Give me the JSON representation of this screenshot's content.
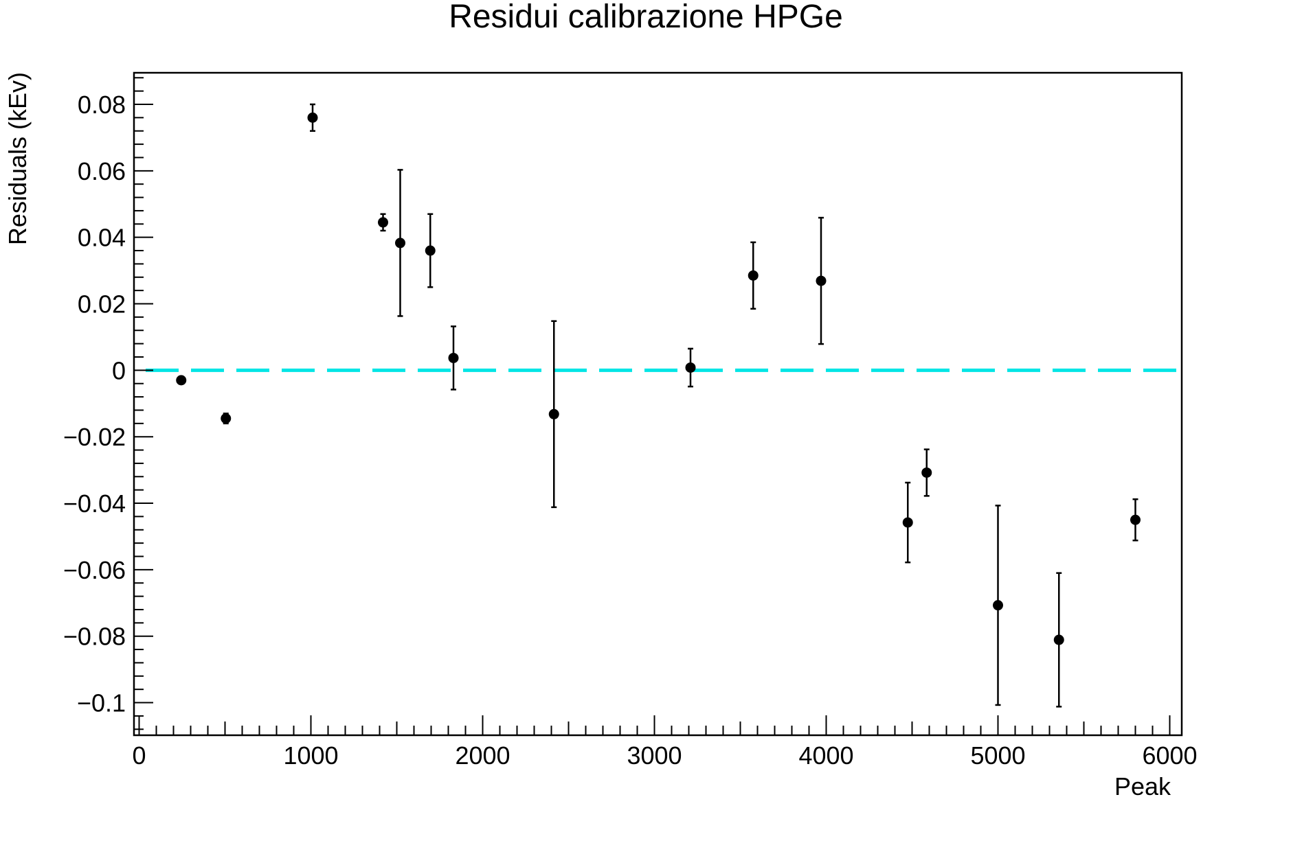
{
  "chart_data": {
    "type": "scatter",
    "title": "Residui calibrazione HPGe",
    "xlabel": "Peak",
    "ylabel": "Residuals (kEv)",
    "xlim": [
      -30,
      6070
    ],
    "ylim": [
      -0.1098,
      0.0895
    ],
    "x_ticks": [
      0,
      1000,
      2000,
      3000,
      4000,
      5000,
      6000
    ],
    "x_tick_labels": [
      "0",
      "1000",
      "2000",
      "3000",
      "4000",
      "5000",
      "6000"
    ],
    "y_ticks": [
      0.08,
      0.06,
      0.04,
      0.02,
      0,
      -0.02,
      -0.04,
      -0.06,
      -0.08,
      -0.1
    ],
    "y_tick_labels": [
      "0.08",
      "0.06",
      "0.04",
      "0.02",
      "0",
      "−0.02",
      "−0.04",
      "−0.06",
      "−0.08",
      "−0.1"
    ],
    "grid": false,
    "reference_line": {
      "y": 0,
      "color": "#00e5e5",
      "style": "dashed"
    },
    "marker_color": "#000000",
    "series": [
      {
        "points": [
          {
            "x": 245,
            "y": -0.003,
            "err": 0.0008
          },
          {
            "x": 505,
            "y": -0.0145,
            "err": 0.0015
          },
          {
            "x": 1010,
            "y": 0.076,
            "err": 0.004
          },
          {
            "x": 1420,
            "y": 0.0445,
            "err": 0.0025
          },
          {
            "x": 1520,
            "y": 0.0383,
            "err": 0.022
          },
          {
            "x": 1695,
            "y": 0.036,
            "err": 0.011
          },
          {
            "x": 1830,
            "y": 0.0037,
            "err": 0.0095
          },
          {
            "x": 2415,
            "y": -0.0132,
            "err": 0.028
          },
          {
            "x": 3210,
            "y": 0.0008,
            "err": 0.0057
          },
          {
            "x": 3575,
            "y": 0.0285,
            "err": 0.01
          },
          {
            "x": 3970,
            "y": 0.0269,
            "err": 0.019
          },
          {
            "x": 4475,
            "y": -0.0458,
            "err": 0.012
          },
          {
            "x": 4585,
            "y": -0.0308,
            "err": 0.007
          },
          {
            "x": 5000,
            "y": -0.0707,
            "err": 0.03
          },
          {
            "x": 5355,
            "y": -0.0811,
            "err": 0.0201
          },
          {
            "x": 5800,
            "y": -0.045,
            "err": 0.0062
          }
        ]
      }
    ]
  }
}
